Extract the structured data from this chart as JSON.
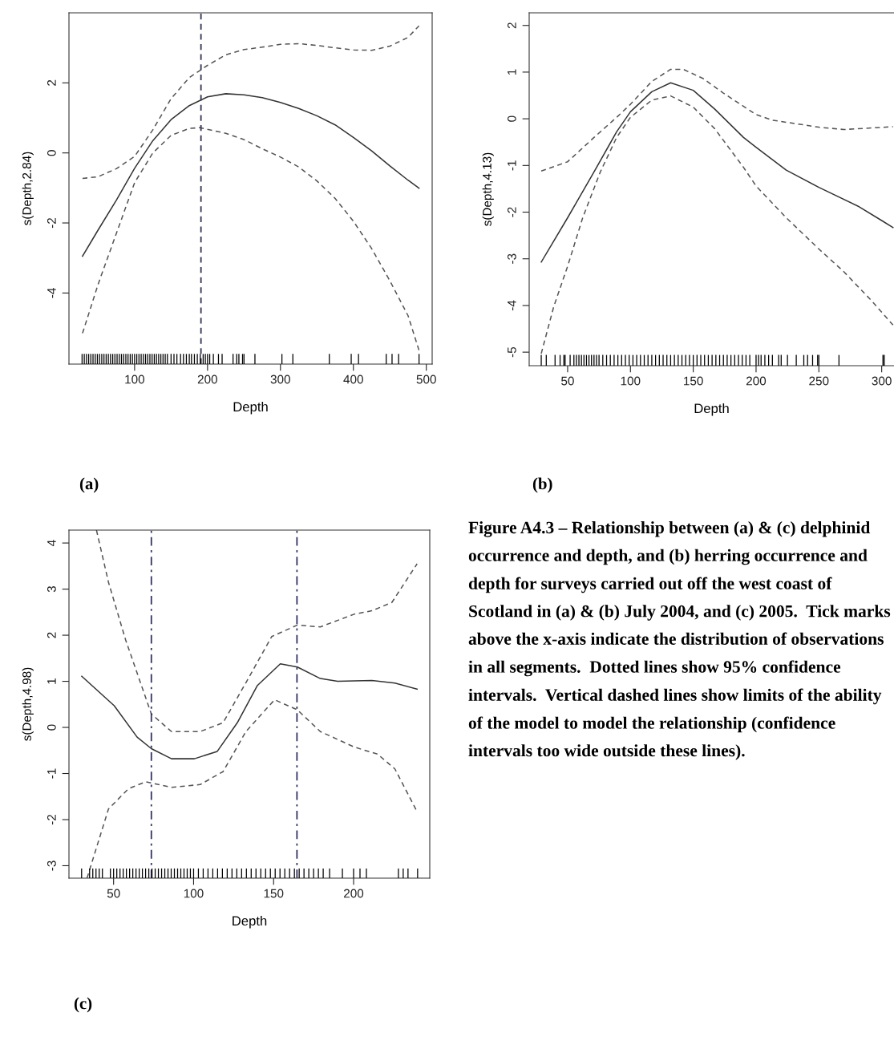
{
  "chart_data": [
    {
      "type": "line",
      "xlabel": "Depth",
      "ylabel": "s(Depth,2.84)",
      "xlim": [
        10,
        508
      ],
      "xticks": [
        100,
        200,
        300,
        400,
        500
      ],
      "ylim": [
        -6.03,
        4.0
      ],
      "yticks": [
        -4,
        -2,
        0,
        2
      ],
      "grid": false,
      "legend": false,
      "annotations": [
        "(a)"
      ],
      "ref_lines": [
        {
          "axis": "x",
          "value": 191,
          "color": "#333355",
          "line_style": "dashed"
        }
      ],
      "series": [
        {
          "color": "#333333",
          "line_style": "solid",
          "x": [
            28.6,
            50,
            75,
            100,
            125,
            150,
            175,
            200,
            225,
            250,
            275,
            300,
            325,
            350,
            375,
            400,
            425,
            450,
            475,
            490
          ],
          "values": [
            -2.95,
            -2.2,
            -1.35,
            -0.44,
            0.35,
            0.95,
            1.35,
            1.6,
            1.69,
            1.66,
            1.58,
            1.44,
            1.27,
            1.06,
            0.8,
            0.44,
            0.06,
            -0.37,
            -0.78,
            -1.01
          ]
        },
        {
          "color": "#555555",
          "line_style": "dashed",
          "x": [
            28.6,
            50,
            75,
            100,
            125,
            150,
            175,
            200,
            225,
            250,
            275,
            300,
            325,
            350,
            375,
            400,
            425,
            450,
            475,
            490
          ],
          "values": [
            -0.73,
            -0.68,
            -0.45,
            -0.1,
            0.66,
            1.55,
            2.15,
            2.5,
            2.8,
            2.95,
            3.02,
            3.1,
            3.12,
            3.07,
            3.0,
            2.94,
            2.93,
            3.05,
            3.3,
            3.63
          ]
        },
        {
          "color": "#555555",
          "line_style": "dashed",
          "x": [
            28.6,
            50,
            75,
            100,
            125,
            150,
            175,
            190,
            225,
            250,
            275,
            300,
            325,
            350,
            375,
            400,
            425,
            450,
            475,
            490
          ],
          "values": [
            -5.15,
            -3.75,
            -2.3,
            -0.85,
            0.0,
            0.5,
            0.7,
            0.72,
            0.56,
            0.38,
            0.12,
            -0.12,
            -0.4,
            -0.8,
            -1.3,
            -1.95,
            -2.73,
            -3.65,
            -4.65,
            -5.64
          ]
        },
        {
          "type": "bar",
          "color": "#000000",
          "x": [
            28,
            31,
            34,
            37,
            40,
            43,
            46,
            49,
            52,
            55,
            58,
            61,
            64,
            67,
            70,
            73,
            76,
            79,
            82,
            85,
            88,
            91,
            94,
            97,
            100,
            103,
            106,
            109,
            112,
            115,
            118,
            121,
            124,
            127,
            130,
            133,
            136,
            139,
            142,
            145,
            150,
            154,
            158,
            163,
            167,
            171,
            175,
            178,
            182,
            186,
            190,
            194,
            197,
            200,
            203,
            208,
            215,
            220,
            235,
            240,
            243,
            248,
            250,
            265,
            302,
            317,
            367,
            397,
            407,
            445,
            453,
            462,
            490
          ],
          "base": [
            -6.03,
            -6.03,
            -6.03,
            -6.03,
            -6.03,
            -6.03,
            -6.03,
            -6.03,
            -6.03,
            -6.03,
            -6.03,
            -6.03,
            -6.03,
            -6.03,
            -6.03,
            -6.03,
            -6.03,
            -6.03,
            -6.03,
            -6.03,
            -6.03,
            -6.03,
            -6.03,
            -6.03,
            -6.03,
            -6.03,
            -6.03,
            -6.03,
            -6.03,
            -6.03,
            -6.03,
            -6.03,
            -6.03,
            -6.03,
            -6.03,
            -6.03,
            -6.03,
            -6.03,
            -6.03,
            -6.03,
            -6.03,
            -6.03,
            -6.03,
            -6.03,
            -6.03,
            -6.03,
            -6.03,
            -6.03,
            -6.03,
            -6.03,
            -6.03,
            -6.03,
            -6.03,
            -6.03,
            -6.03,
            -6.03,
            -6.03,
            -6.03,
            -6.03,
            -6.03,
            -6.03,
            -6.03,
            -6.03,
            -6.03,
            -6.03,
            -6.03,
            -6.03,
            -6.03,
            -6.03,
            -6.03,
            -6.03,
            -6.03,
            -6.03
          ],
          "values": [
            0.29,
            0.29,
            0.29,
            0.29,
            0.29,
            0.29,
            0.29,
            0.29,
            0.29,
            0.29,
            0.29,
            0.29,
            0.29,
            0.29,
            0.29,
            0.29,
            0.29,
            0.29,
            0.29,
            0.29,
            0.29,
            0.29,
            0.29,
            0.29,
            0.29,
            0.29,
            0.29,
            0.29,
            0.29,
            0.29,
            0.29,
            0.29,
            0.29,
            0.29,
            0.29,
            0.29,
            0.29,
            0.29,
            0.29,
            0.29,
            0.29,
            0.29,
            0.29,
            0.29,
            0.29,
            0.29,
            0.29,
            0.29,
            0.29,
            0.29,
            0.29,
            0.29,
            0.29,
            0.29,
            0.29,
            0.29,
            0.29,
            0.29,
            0.29,
            0.29,
            0.29,
            0.29,
            0.29,
            0.29,
            0.29,
            0.29,
            0.29,
            0.29,
            0.29,
            0.29,
            0.29,
            0.29,
            0.29
          ]
        }
      ]
    },
    {
      "type": "line",
      "xlabel": "Depth",
      "ylabel": "s(Depth,4.13)",
      "xlim": [
        19.4,
        309.8
      ],
      "xticks": [
        50,
        100,
        150,
        200,
        250,
        300
      ],
      "ylim": [
        -5.29,
        2.27
      ],
      "yticks": [
        -5,
        -4,
        -3,
        -2,
        -1,
        0,
        1,
        2
      ],
      "grid": false,
      "legend": false,
      "annotations": [
        "(b)"
      ],
      "series": [
        {
          "color": "#333333",
          "line_style": "solid",
          "x": [
            29,
            50,
            71,
            89,
            100,
            117,
            132,
            150,
            167,
            190,
            200,
            224,
            250,
            281,
            300,
            309
          ],
          "values": [
            -3.07,
            -2.12,
            -1.14,
            -0.28,
            0.15,
            0.58,
            0.77,
            0.61,
            0.21,
            -0.4,
            -0.61,
            -1.1,
            -1.47,
            -1.87,
            -2.18,
            -2.33
          ]
        },
        {
          "color": "#555555",
          "line_style": "dashed",
          "x": [
            29,
            50,
            71,
            89,
            100,
            117,
            132,
            142,
            158,
            174,
            200,
            213,
            250,
            270,
            309
          ],
          "values": [
            -1.12,
            -0.92,
            -0.4,
            0.03,
            0.31,
            0.8,
            1.06,
            1.06,
            0.86,
            0.55,
            0.09,
            -0.03,
            -0.18,
            -0.23,
            -0.17
          ]
        },
        {
          "color": "#555555",
          "line_style": "dashed",
          "x": [
            29,
            39,
            50,
            62,
            76,
            89,
            100,
            117,
            132,
            150,
            167,
            190,
            200,
            224,
            250,
            270,
            292,
            309
          ],
          "values": [
            -5.03,
            -4.02,
            -3.16,
            -2.12,
            -1.14,
            -0.4,
            0.03,
            0.4,
            0.49,
            0.25,
            -0.21,
            -1.04,
            -1.44,
            -2.12,
            -2.79,
            -3.28,
            -3.9,
            -4.42
          ]
        },
        {
          "type": "bar",
          "color": "#000000",
          "x": [
            29,
            33,
            40,
            44,
            47,
            48,
            52,
            55,
            57,
            59,
            61,
            63,
            65,
            67,
            69,
            71,
            73,
            75,
            78,
            81,
            84,
            87,
            90,
            93,
            96,
            99,
            102,
            105,
            108,
            111,
            114,
            117,
            120,
            123,
            126,
            129,
            132,
            135,
            138,
            141,
            144,
            147,
            150,
            153,
            156,
            159,
            162,
            165,
            168,
            171,
            174,
            177,
            180,
            183,
            186,
            189,
            192,
            195,
            200,
            202,
            204,
            207,
            210,
            213,
            218,
            220,
            225,
            232,
            238,
            241,
            245,
            249,
            250,
            266,
            301,
            302
          ],
          "base": [
            -5.29,
            -5.29,
            -5.29,
            -5.29,
            -5.29,
            -5.29,
            -5.29,
            -5.29,
            -5.29,
            -5.29,
            -5.29,
            -5.29,
            -5.29,
            -5.29,
            -5.29,
            -5.29,
            -5.29,
            -5.29,
            -5.29,
            -5.29,
            -5.29,
            -5.29,
            -5.29,
            -5.29,
            -5.29,
            -5.29,
            -5.29,
            -5.29,
            -5.29,
            -5.29,
            -5.29,
            -5.29,
            -5.29,
            -5.29,
            -5.29,
            -5.29,
            -5.29,
            -5.29,
            -5.29,
            -5.29,
            -5.29,
            -5.29,
            -5.29,
            -5.29,
            -5.29,
            -5.29,
            -5.29,
            -5.29,
            -5.29,
            -5.29,
            -5.29,
            -5.29,
            -5.29,
            -5.29,
            -5.29,
            -5.29,
            -5.29,
            -5.29,
            -5.29,
            -5.29,
            -5.29,
            -5.29,
            -5.29,
            -5.29,
            -5.29,
            -5.29,
            -5.29,
            -5.29,
            -5.29,
            -5.29,
            -5.29,
            -5.29,
            -5.29,
            -5.29,
            -5.29,
            -5.29
          ],
          "values": [
            0.23,
            0.23,
            0.23,
            0.23,
            0.23,
            0.23,
            0.23,
            0.23,
            0.23,
            0.23,
            0.23,
            0.23,
            0.23,
            0.23,
            0.23,
            0.23,
            0.23,
            0.23,
            0.23,
            0.23,
            0.23,
            0.23,
            0.23,
            0.23,
            0.23,
            0.23,
            0.23,
            0.23,
            0.23,
            0.23,
            0.23,
            0.23,
            0.23,
            0.23,
            0.23,
            0.23,
            0.23,
            0.23,
            0.23,
            0.23,
            0.23,
            0.23,
            0.23,
            0.23,
            0.23,
            0.23,
            0.23,
            0.23,
            0.23,
            0.23,
            0.23,
            0.23,
            0.23,
            0.23,
            0.23,
            0.23,
            0.23,
            0.23,
            0.23,
            0.23,
            0.23,
            0.23,
            0.23,
            0.23,
            0.23,
            0.23,
            0.23,
            0.23,
            0.23,
            0.23,
            0.23,
            0.23,
            0.23,
            0.23,
            0.23,
            0.23
          ]
        }
      ]
    },
    {
      "type": "line",
      "xlabel": "Depth",
      "ylabel": "s(Depth,4.98)",
      "xlim": [
        22.1,
        247.6
      ],
      "xticks": [
        50,
        100,
        150,
        200
      ],
      "ylim": [
        -3.27,
        4.28
      ],
      "yticks": [
        -3,
        -2,
        -1,
        0,
        1,
        2,
        3,
        4
      ],
      "grid": false,
      "legend": false,
      "annotations": [
        "(c)",
        "Figure A4.3 – Relationship between (a) & (c) delphinid occurrence and depth, and (b) herring occurrence and depth for surveys carried out off the west coast of Scotland in (a) & (b) July 2004, and (c) 2005.  Tick marks above the x-axis indicate the distribution of observations in all segments.  Dotted lines show 95% confidence intervals.  Vertical dashed lines show limits of the ability of the model to model the relationship (confidence intervals too wide outside these lines)."
      ],
      "ref_lines": [
        {
          "axis": "x",
          "value": 73.6,
          "color": "#333366",
          "line_style": "dashdot"
        },
        {
          "axis": "x",
          "value": 164.6,
          "color": "#333366",
          "line_style": "dashdot"
        }
      ],
      "series": [
        {
          "color": "#333333",
          "line_style": "solid",
          "x": [
            30.1,
            50.4,
            64.7,
            73.6,
            86.2,
            100.5,
            114.8,
            127.3,
            139.9,
            154.2,
            164.9,
            179.2,
            190.0,
            211.4,
            225.8,
            239.7
          ],
          "values": [
            1.11,
            0.47,
            -0.21,
            -0.46,
            -0.68,
            -0.68,
            -0.52,
            0.1,
            0.91,
            1.38,
            1.31,
            1.06,
            1.0,
            1.02,
            0.96,
            0.83
          ]
        },
        {
          "color": "#555555",
          "line_style": "dashed",
          "x": [
            39.3,
            46.8,
            57.5,
            73.6,
            86.2,
            104.1,
            118.4,
            132.7,
            148.8,
            164.9,
            179.2,
            200.7,
            211.4,
            223.9,
            239.7
          ],
          "values": [
            4.28,
            3.15,
            1.9,
            0.29,
            -0.09,
            -0.09,
            0.1,
            0.97,
            1.97,
            2.22,
            2.18,
            2.46,
            2.53,
            2.71,
            3.55
          ]
        },
        {
          "color": "#555555",
          "line_style": "dashed",
          "x": [
            33.4,
            46.8,
            59.3,
            70.0,
            86.2,
            104.1,
            118.4,
            132.7,
            150.6,
            164.9,
            179.2,
            200.7,
            215.0,
            225.8,
            239.7
          ],
          "values": [
            -3.27,
            -1.77,
            -1.33,
            -1.18,
            -1.3,
            -1.24,
            -0.96,
            -0.09,
            0.6,
            0.38,
            -0.09,
            -0.43,
            -0.58,
            -0.9,
            -1.83
          ]
        },
        {
          "type": "bar",
          "color": "#000000",
          "x": [
            30,
            35,
            37,
            39,
            41,
            43,
            48,
            50,
            52,
            54,
            56,
            58,
            60,
            62,
            64,
            66,
            68,
            70,
            72,
            74,
            76,
            78,
            80,
            82,
            84,
            86,
            88,
            90,
            92,
            94,
            96,
            98,
            100,
            103,
            106,
            109,
            112,
            115,
            118,
            121,
            124,
            127,
            130,
            133,
            136,
            139,
            142,
            145,
            148,
            151,
            154,
            157,
            160,
            163,
            166,
            169,
            172,
            175,
            178,
            181,
            185,
            193,
            200,
            204,
            208,
            228,
            231,
            234,
            240
          ],
          "base": [
            -3.27,
            -3.27,
            -3.27,
            -3.27,
            -3.27,
            -3.27,
            -3.27,
            -3.27,
            -3.27,
            -3.27,
            -3.27,
            -3.27,
            -3.27,
            -3.27,
            -3.27,
            -3.27,
            -3.27,
            -3.27,
            -3.27,
            -3.27,
            -3.27,
            -3.27,
            -3.27,
            -3.27,
            -3.27,
            -3.27,
            -3.27,
            -3.27,
            -3.27,
            -3.27,
            -3.27,
            -3.27,
            -3.27,
            -3.27,
            -3.27,
            -3.27,
            -3.27,
            -3.27,
            -3.27,
            -3.27,
            -3.27,
            -3.27,
            -3.27,
            -3.27,
            -3.27,
            -3.27,
            -3.27,
            -3.27,
            -3.27,
            -3.27,
            -3.27,
            -3.27,
            -3.27,
            -3.27,
            -3.27,
            -3.27,
            -3.27,
            -3.27,
            -3.27,
            -3.27,
            -3.27,
            -3.27,
            -3.27,
            -3.27,
            -3.27,
            -3.27,
            -3.27,
            -3.27,
            -3.27
          ],
          "values": [
            0.21,
            0.21,
            0.21,
            0.21,
            0.21,
            0.21,
            0.21,
            0.21,
            0.21,
            0.21,
            0.21,
            0.21,
            0.21,
            0.21,
            0.21,
            0.21,
            0.21,
            0.21,
            0.21,
            0.21,
            0.21,
            0.21,
            0.21,
            0.21,
            0.21,
            0.21,
            0.21,
            0.21,
            0.21,
            0.21,
            0.21,
            0.21,
            0.21,
            0.21,
            0.21,
            0.21,
            0.21,
            0.21,
            0.21,
            0.21,
            0.21,
            0.21,
            0.21,
            0.21,
            0.21,
            0.21,
            0.21,
            0.21,
            0.21,
            0.21,
            0.21,
            0.21,
            0.21,
            0.21,
            0.21,
            0.21,
            0.21,
            0.21,
            0.21,
            0.21,
            0.21,
            0.21,
            0.21,
            0.21,
            0.21,
            0.21,
            0.21,
            0.21,
            0.21
          ]
        }
      ]
    }
  ]
}
